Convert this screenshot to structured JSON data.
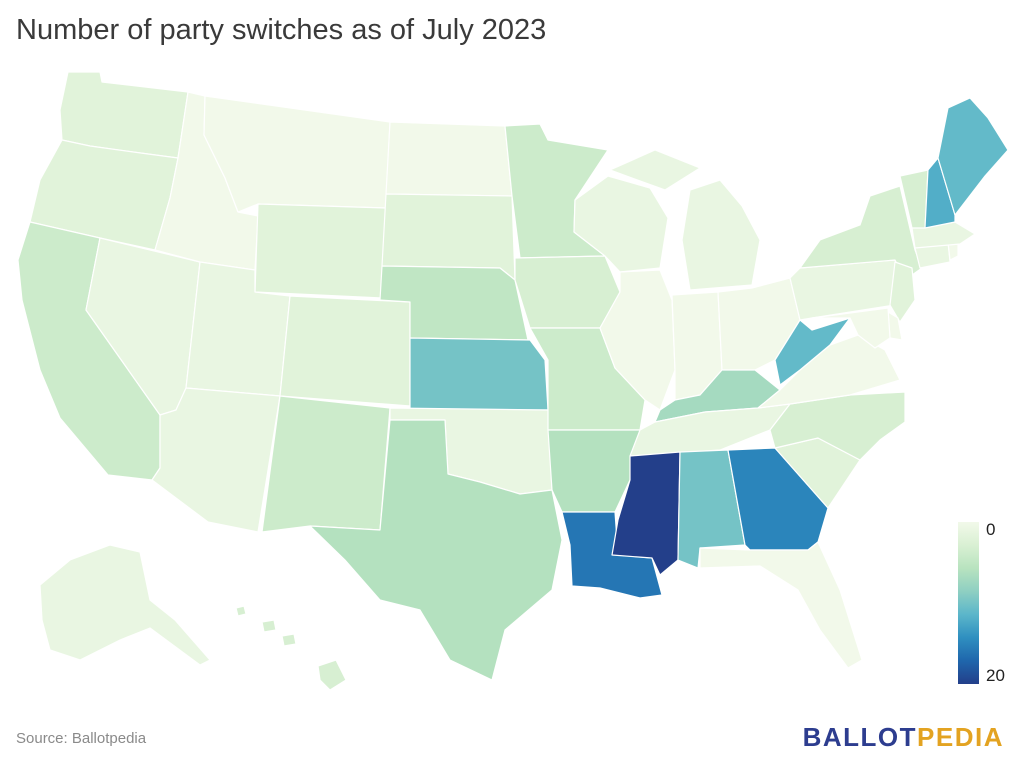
{
  "title": "Number of party switches as of July 2023",
  "source": "Source: Ballotpedia",
  "logo": {
    "part1": "BALLOT",
    "part2": "PEDIA",
    "color1": "#2d3d8f",
    "color2": "#e3a321"
  },
  "legend": {
    "min": "0",
    "max": "20",
    "color_min": "#f2f9ea",
    "color_max": "#233f8a"
  },
  "map_data": {
    "type": "choropleth",
    "region": "United States",
    "scale": [
      0,
      20
    ],
    "states": [
      {
        "name": "Washington",
        "value": 2
      },
      {
        "name": "Oregon",
        "value": 2
      },
      {
        "name": "California",
        "value": 4
      },
      {
        "name": "Nevada",
        "value": 1
      },
      {
        "name": "Idaho",
        "value": 0
      },
      {
        "name": "Montana",
        "value": 0
      },
      {
        "name": "Wyoming",
        "value": 2
      },
      {
        "name": "Utah",
        "value": 1
      },
      {
        "name": "Arizona",
        "value": 1
      },
      {
        "name": "Colorado",
        "value": 2
      },
      {
        "name": "New Mexico",
        "value": 4
      },
      {
        "name": "North Dakota",
        "value": 0
      },
      {
        "name": "South Dakota",
        "value": 2
      },
      {
        "name": "Nebraska",
        "value": 5
      },
      {
        "name": "Kansas",
        "value": 10
      },
      {
        "name": "Oklahoma",
        "value": 1
      },
      {
        "name": "Texas",
        "value": 6
      },
      {
        "name": "Minnesota",
        "value": 4
      },
      {
        "name": "Iowa",
        "value": 3
      },
      {
        "name": "Missouri",
        "value": 4
      },
      {
        "name": "Arkansas",
        "value": 6
      },
      {
        "name": "Louisiana",
        "value": 16
      },
      {
        "name": "Wisconsin",
        "value": 1
      },
      {
        "name": "Illinois",
        "value": 0
      },
      {
        "name": "Michigan",
        "value": 1
      },
      {
        "name": "Indiana",
        "value": 0
      },
      {
        "name": "Ohio",
        "value": 0
      },
      {
        "name": "Kentucky",
        "value": 7
      },
      {
        "name": "Tennessee",
        "value": 1
      },
      {
        "name": "Mississippi",
        "value": 20
      },
      {
        "name": "Alabama",
        "value": 10
      },
      {
        "name": "Georgia",
        "value": 15
      },
      {
        "name": "Florida",
        "value": 0
      },
      {
        "name": "South Carolina",
        "value": 2
      },
      {
        "name": "North Carolina",
        "value": 3
      },
      {
        "name": "Virginia",
        "value": 0
      },
      {
        "name": "West Virginia",
        "value": 11
      },
      {
        "name": "Pennsylvania",
        "value": 1
      },
      {
        "name": "New York",
        "value": 3
      },
      {
        "name": "New Jersey",
        "value": 2
      },
      {
        "name": "Delaware",
        "value": 0
      },
      {
        "name": "Maryland",
        "value": 0
      },
      {
        "name": "Connecticut",
        "value": 1
      },
      {
        "name": "Rhode Island",
        "value": 0
      },
      {
        "name": "Massachusetts",
        "value": 1
      },
      {
        "name": "Vermont",
        "value": 3
      },
      {
        "name": "New Hampshire",
        "value": 12
      },
      {
        "name": "Maine",
        "value": 11
      },
      {
        "name": "Alaska",
        "value": 1
      },
      {
        "name": "Hawaii",
        "value": 3
      }
    ]
  }
}
